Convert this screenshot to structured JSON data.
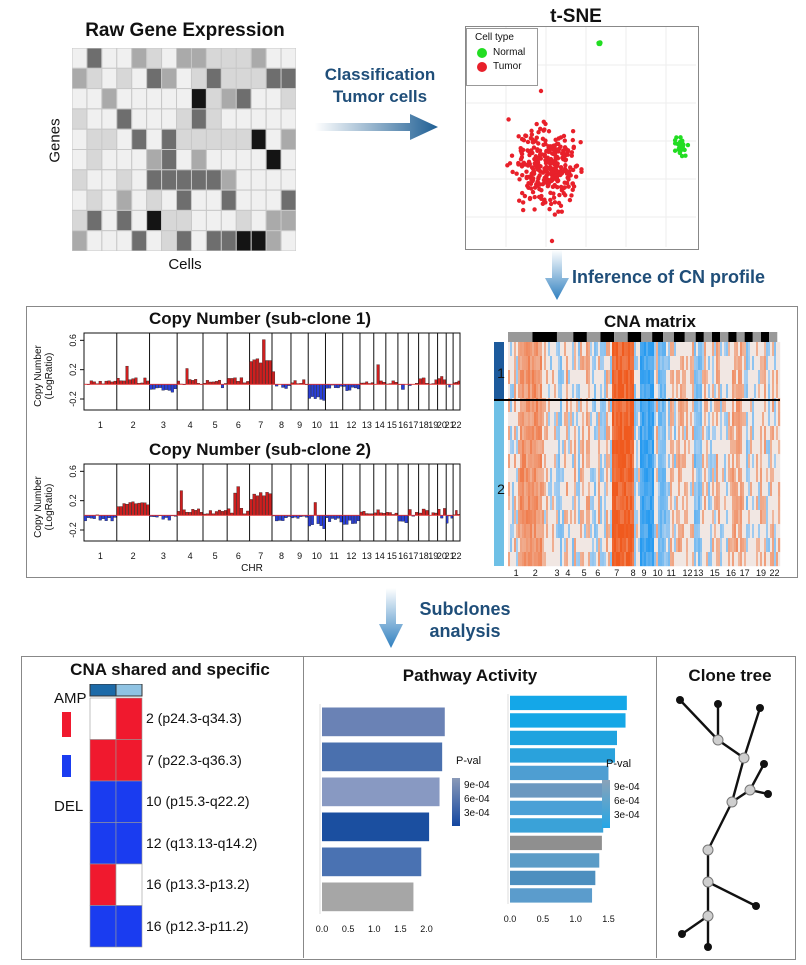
{
  "top": {
    "raw_title": "Raw Gene Expression",
    "genes_label": "Genes",
    "cells_label": "Cells",
    "arrow_label_1": "Classification",
    "arrow_label_2": "Tumor cells",
    "tsne_title": "t-SNE",
    "legend_title": "Cell type",
    "legend_normal": "Normal",
    "legend_tumor": "Tumor",
    "normal_color": "#22dd22",
    "tumor_color": "#e8202a",
    "inference_label": "Inference of CN profile"
  },
  "middle": {
    "cn1_title": "Copy Number (sub-clone 1)",
    "cn2_title": "Copy Number (sub-clone 2)",
    "ylabel_1": "Copy Number",
    "ylabel_2": "(LogRatio)",
    "xlabel": "CHR",
    "yticks": [
      "0.6",
      "0.2",
      "-0.2"
    ],
    "chromosomes": [
      "1",
      "2",
      "3",
      "4",
      "5",
      "6",
      "7",
      "8",
      "9",
      "10",
      "11",
      "12",
      "13",
      "14",
      "15",
      "16",
      "17",
      "18",
      "19",
      "20",
      "21",
      "22"
    ],
    "cna_title": "CNA matrix",
    "clone_1": "1",
    "clone_2": "2",
    "cna_x_labels": [
      "1",
      "2",
      "3",
      "4",
      "5",
      "6",
      "7",
      "8",
      "9",
      "10",
      "11",
      "12",
      "13",
      "15",
      "16",
      "17",
      "19",
      "22"
    ],
    "subclones_1": "Subclones",
    "subclones_2": "analysis"
  },
  "bottom": {
    "shared_title": "CNA shared and specific",
    "amp_label": "AMP",
    "del_label": "DEL",
    "amp_color": "#f0192e",
    "del_color": "#1a3cf0",
    "regions": [
      "2 (p24.3-q34.3)",
      "7 (p22.3-q36.3)",
      "10 (p15.3-q22.2)",
      "12 (q13.13-q14.2)",
      "16 (p13.3-p13.2)",
      "16 (p12.3-p11.2)"
    ],
    "pathway_title": "Pathway Activity",
    "pval_label": "P-val",
    "pval_ticks": [
      "9e-04",
      "6e-04",
      "3e-04"
    ],
    "x_ticks_1": [
      "0.0",
      "0.5",
      "1.0",
      "1.5",
      "2.0"
    ],
    "x_ticks_2": [
      "0.0",
      "0.5",
      "1.0",
      "1.5"
    ],
    "tree_title": "Clone tree"
  }
}
